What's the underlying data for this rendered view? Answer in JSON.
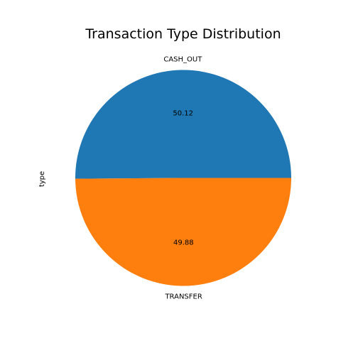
{
  "chart_data": {
    "type": "pie",
    "title": "Transaction Type Distribution",
    "ylabel": "type",
    "slices": [
      {
        "label": "CASH_OUT",
        "value": 50.12,
        "pct_label": "50.12",
        "color": "#1f77b4"
      },
      {
        "label": "TRANSFER",
        "value": 49.88,
        "pct_label": "49.88",
        "color": "#ff7f0e"
      }
    ],
    "start_angle_deg": 0,
    "direction": "counterclockwise",
    "legend": "none"
  }
}
